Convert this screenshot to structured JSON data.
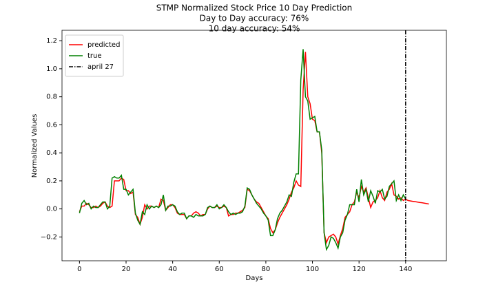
{
  "chart_data": {
    "type": "line",
    "title": "STMP Normalized Stock Price 10 Day Prediction",
    "subtitle": [
      "Day to Day accuracy: 76%",
      "10 day accuracy: 54%"
    ],
    "xlabel": "Days",
    "ylabel": "Normalized Values",
    "x": [
      0,
      1,
      2,
      3,
      4,
      5,
      6,
      7,
      8,
      9,
      10,
      11,
      12,
      13,
      14,
      15,
      16,
      17,
      18,
      19,
      20,
      21,
      22,
      23,
      24,
      25,
      26,
      27,
      28,
      29,
      30,
      31,
      32,
      33,
      34,
      35,
      36,
      37,
      38,
      39,
      40,
      41,
      42,
      43,
      44,
      45,
      46,
      47,
      48,
      49,
      50,
      51,
      52,
      53,
      54,
      55,
      56,
      57,
      58,
      59,
      60,
      61,
      62,
      63,
      64,
      65,
      66,
      67,
      68,
      69,
      70,
      71,
      72,
      73,
      74,
      75,
      76,
      77,
      78,
      79,
      80,
      81,
      82,
      83,
      84,
      85,
      86,
      87,
      88,
      89,
      90,
      91,
      92,
      93,
      94,
      95,
      96,
      97,
      98,
      99,
      100,
      101,
      102,
      103,
      104,
      105,
      106,
      107,
      108,
      109,
      110,
      111,
      112,
      113,
      114,
      115,
      116,
      117,
      118,
      119,
      120,
      121,
      122,
      123,
      124,
      125,
      126,
      127,
      128,
      129,
      130,
      131,
      132,
      133,
      134,
      135,
      136,
      137,
      138,
      139,
      140,
      141,
      142,
      143,
      144,
      145,
      146,
      147,
      148,
      149,
      150
    ],
    "series": [
      {
        "name": "predicted",
        "color": "#ff0000",
        "values": [
          -0.02,
          0.02,
          0.02,
          0.04,
          0.03,
          0.01,
          0.01,
          0.02,
          0.01,
          0.02,
          0.04,
          0.05,
          0.02,
          0.01,
          0.02,
          0.2,
          0.2,
          0.2,
          0.22,
          0.21,
          0.13,
          0.13,
          0.11,
          0.12,
          -0.04,
          -0.06,
          -0.11,
          -0.06,
          0.03,
          0.0,
          0.02,
          0.02,
          0.01,
          0.02,
          0.01,
          0.07,
          0.06,
          -0.01,
          0.01,
          0.03,
          0.03,
          0.01,
          -0.03,
          -0.04,
          -0.04,
          -0.04,
          -0.07,
          -0.05,
          -0.05,
          -0.03,
          -0.02,
          -0.03,
          -0.05,
          -0.04,
          -0.04,
          0.0,
          0.02,
          0.01,
          0.01,
          0.02,
          0.01,
          0.01,
          0.02,
          0.01,
          -0.05,
          -0.04,
          -0.04,
          -0.03,
          -0.03,
          -0.02,
          -0.01,
          0.01,
          0.14,
          0.13,
          0.1,
          0.07,
          0.05,
          0.04,
          0.01,
          -0.02,
          -0.05,
          -0.07,
          -0.14,
          -0.17,
          -0.15,
          -0.1,
          -0.06,
          -0.03,
          0.0,
          0.03,
          0.07,
          0.12,
          0.15,
          0.2,
          0.17,
          0.16,
          0.85,
          1.12,
          0.8,
          0.75,
          0.64,
          0.63,
          0.55,
          0.55,
          0.4,
          -0.17,
          -0.24,
          -0.2,
          -0.19,
          -0.18,
          -0.2,
          -0.25,
          -0.19,
          -0.14,
          -0.06,
          -0.04,
          -0.02,
          0.03,
          0.05,
          0.12,
          0.08,
          0.16,
          0.12,
          0.15,
          0.08,
          0.01,
          0.05,
          0.06,
          0.08,
          0.13,
          0.08,
          0.06,
          0.12,
          0.14,
          0.18,
          0.1,
          0.09,
          0.07,
          0.08,
          0.06,
          0.07,
          0.06,
          0.057,
          0.054,
          0.052,
          0.049,
          0.046,
          0.044,
          0.041,
          0.038,
          0.035
        ]
      },
      {
        "name": "true",
        "color": "#008000",
        "values": [
          -0.03,
          0.04,
          0.06,
          0.03,
          0.04,
          0.0,
          0.02,
          0.01,
          0.01,
          0.03,
          0.05,
          0.05,
          0.0,
          0.02,
          0.22,
          0.23,
          0.22,
          0.22,
          0.24,
          0.14,
          0.14,
          0.1,
          0.12,
          0.14,
          -0.03,
          -0.08,
          -0.11,
          -0.02,
          -0.04,
          0.03,
          0.0,
          0.02,
          0.01,
          0.02,
          0.01,
          0.03,
          0.1,
          -0.01,
          0.02,
          0.02,
          0.03,
          0.02,
          -0.02,
          -0.04,
          -0.03,
          -0.03,
          -0.07,
          -0.05,
          -0.05,
          -0.06,
          -0.04,
          -0.05,
          -0.05,
          -0.05,
          -0.04,
          0.01,
          0.02,
          0.01,
          0.01,
          0.03,
          0.0,
          0.01,
          0.03,
          0.01,
          -0.02,
          -0.04,
          -0.03,
          -0.04,
          -0.03,
          -0.03,
          -0.02,
          0.02,
          0.15,
          0.14,
          0.1,
          0.07,
          0.04,
          0.02,
          0.0,
          -0.03,
          -0.05,
          -0.08,
          -0.19,
          -0.19,
          -0.15,
          -0.07,
          -0.03,
          -0.01,
          0.02,
          0.05,
          0.1,
          0.09,
          0.19,
          0.25,
          0.25,
          0.92,
          1.14,
          0.8,
          0.77,
          0.64,
          0.65,
          0.66,
          0.55,
          0.55,
          0.42,
          -0.17,
          -0.29,
          -0.26,
          -0.2,
          -0.21,
          -0.24,
          -0.28,
          -0.2,
          -0.17,
          -0.08,
          -0.04,
          0.03,
          0.03,
          0.03,
          0.14,
          0.05,
          0.21,
          0.1,
          0.14,
          0.05,
          0.13,
          0.09,
          0.04,
          0.13,
          0.12,
          0.14,
          0.07,
          0.09,
          0.16,
          0.18,
          0.2,
          0.06,
          0.1,
          0.06,
          0.1,
          0.07,
          null,
          null,
          null,
          null,
          null,
          null,
          null,
          null,
          null,
          null
        ]
      }
    ],
    "vline": {
      "name": "april 27",
      "x": 140,
      "color": "#000000"
    },
    "xlim": [
      -7.5,
      157.5
    ],
    "xticks": [
      0,
      20,
      40,
      60,
      80,
      100,
      120,
      140
    ],
    "ylim": [
      -0.37,
      1.245
    ],
    "yticks": [
      {
        "value": -0.2,
        "label": "−0.2"
      },
      {
        "value": 0,
        "label": "0.0"
      },
      {
        "value": 0.2,
        "label": "0.2"
      },
      {
        "value": 0.4,
        "label": "0.4"
      },
      {
        "value": 0.6,
        "label": "0.6"
      },
      {
        "value": 0.8,
        "label": "0.8"
      },
      {
        "value": 1.0,
        "label": "1.0"
      },
      {
        "value": 1.2,
        "label": "1.2"
      }
    ],
    "legend": "upper left",
    "grid": false
  }
}
